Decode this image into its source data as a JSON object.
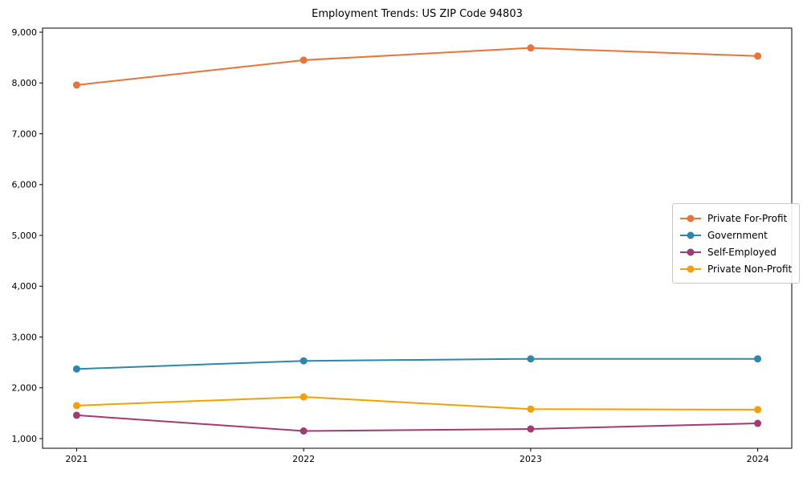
{
  "title": "Employment Trends: US ZIP Code 94803",
  "chart_data": {
    "type": "line",
    "title": "Employment Trends: US ZIP Code 94803",
    "xlabel": "",
    "ylabel": "",
    "x": [
      2021,
      2022,
      2023,
      2024
    ],
    "x_tick_labels": [
      "2021",
      "2022",
      "2023",
      "2024"
    ],
    "y_ticks": [
      1000,
      2000,
      3000,
      4000,
      5000,
      6000,
      7000,
      8000,
      9000
    ],
    "y_tick_labels": [
      "1,000",
      "2,000",
      "3,000",
      "4,000",
      "5,000",
      "6,000",
      "7,000",
      "8,000",
      "9,000"
    ],
    "xlim": [
      2020.85,
      2024.15
    ],
    "ylim": [
      810,
      9080
    ],
    "grid": false,
    "legend_position": "right-middle",
    "marker": "circle",
    "axis_color": "#000000",
    "series": [
      {
        "name": "Private For-Profit",
        "color": "#E8743B",
        "values": [
          7960,
          8450,
          8690,
          8530
        ]
      },
      {
        "name": "Government",
        "color": "#2E86AB",
        "values": [
          2370,
          2530,
          2570,
          2570
        ]
      },
      {
        "name": "Self-Employed",
        "color": "#A23B72",
        "values": [
          1460,
          1150,
          1190,
          1300
        ]
      },
      {
        "name": "Private Non-Profit",
        "color": "#F2A104",
        "values": [
          1650,
          1820,
          1580,
          1570
        ]
      }
    ]
  }
}
